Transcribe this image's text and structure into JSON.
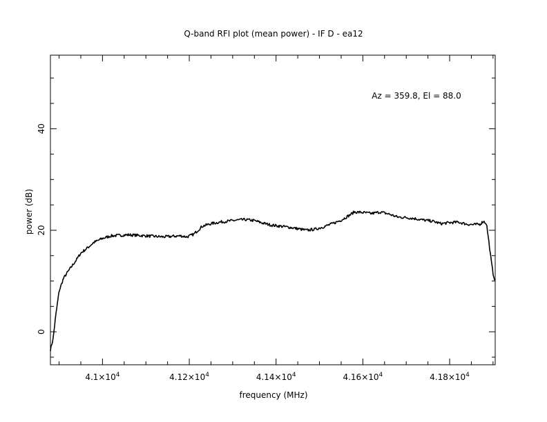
{
  "chart_data": {
    "type": "line",
    "title": "Q-band RFI plot (mean power) - IF D - ea12",
    "xlabel": "frequency (MHz)",
    "ylabel": "power (dB)",
    "annotation": "Az = 359.8, El = 88.0",
    "xlim": [
      40880,
      41905
    ],
    "ylim": [
      -6.5,
      54.5
    ],
    "x_ticks": [
      {
        "value": 41000,
        "label_base": "4.1×10",
        "label_exp": "4"
      },
      {
        "value": 41200,
        "label_base": "4.12×10",
        "label_exp": "4"
      },
      {
        "value": 41400,
        "label_base": "4.14×10",
        "label_exp": "4"
      },
      {
        "value": 41600,
        "label_base": "4.16×10",
        "label_exp": "4"
      },
      {
        "value": 41800,
        "label_base": "4.18×10",
        "label_exp": "4"
      }
    ],
    "y_ticks": [
      {
        "value": 0,
        "label": "0"
      },
      {
        "value": 20,
        "label": "20"
      },
      {
        "value": 40,
        "label": "40"
      }
    ],
    "grid": false,
    "line_color": "#000000",
    "series": [
      {
        "x": [
          40880,
          40886,
          40892,
          40900,
          40910,
          40920,
          40930,
          40940,
          40950,
          40965,
          40980,
          41000,
          41020,
          41040,
          41060,
          41080,
          41100,
          41120,
          41140,
          41160,
          41180,
          41195,
          41210,
          41220,
          41230,
          41250,
          41270,
          41290,
          41310,
          41330,
          41350,
          41370,
          41390,
          41410,
          41430,
          41450,
          41470,
          41490,
          41510,
          41530,
          41550,
          41570,
          41580,
          41600,
          41620,
          41640,
          41660,
          41680,
          41700,
          41720,
          41740,
          41760,
          41780,
          41800,
          41820,
          41840,
          41855,
          41870,
          41878,
          41885,
          41890,
          41895,
          41900,
          41905
        ],
        "y": [
          -3.5,
          -1.5,
          3.0,
          8.0,
          10.5,
          11.8,
          13.0,
          14.2,
          15.5,
          16.5,
          17.6,
          18.4,
          18.9,
          19.0,
          19.1,
          19.0,
          18.9,
          18.8,
          18.7,
          18.8,
          18.9,
          18.7,
          19.2,
          20.0,
          20.8,
          21.3,
          21.6,
          21.8,
          22.0,
          22.1,
          21.9,
          21.4,
          21.0,
          20.8,
          20.6,
          20.3,
          20.0,
          20.2,
          20.7,
          21.3,
          22.0,
          23.0,
          23.6,
          23.5,
          23.3,
          23.6,
          23.2,
          22.6,
          22.5,
          22.3,
          22.0,
          21.8,
          21.3,
          21.5,
          21.6,
          21.2,
          21.1,
          21.2,
          21.8,
          21.3,
          18.0,
          14.5,
          11.5,
          10.0
        ]
      }
    ]
  }
}
